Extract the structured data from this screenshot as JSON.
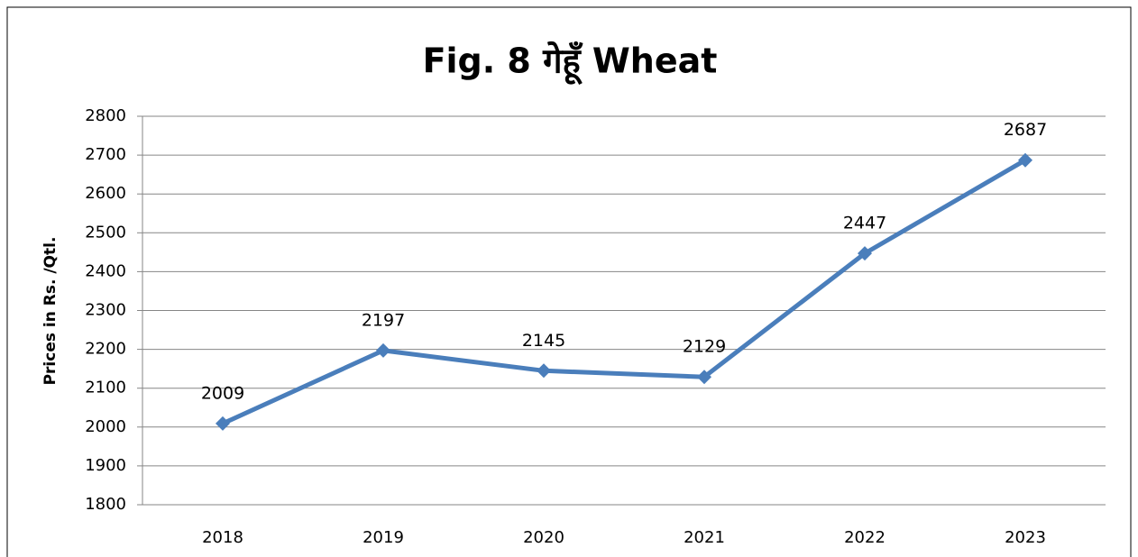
{
  "chart_data": {
    "type": "line",
    "title": "Fig. 8 गेहूँ Wheat",
    "y_label": "Prices in Rs. /Qtl.",
    "categories": [
      "2018",
      "2019",
      "2020",
      "2021",
      "2022",
      "2023"
    ],
    "series": [
      {
        "name": "Wheat",
        "color": "#4a7ebb",
        "values": [
          2009,
          2197,
          2145,
          2129,
          2447,
          2687
        ]
      }
    ],
    "ylim": [
      1800,
      2800
    ],
    "yticks": [
      1800,
      1900,
      2000,
      2100,
      2200,
      2300,
      2400,
      2500,
      2600,
      2700,
      2800
    ],
    "grid": true,
    "data_labels": true
  }
}
